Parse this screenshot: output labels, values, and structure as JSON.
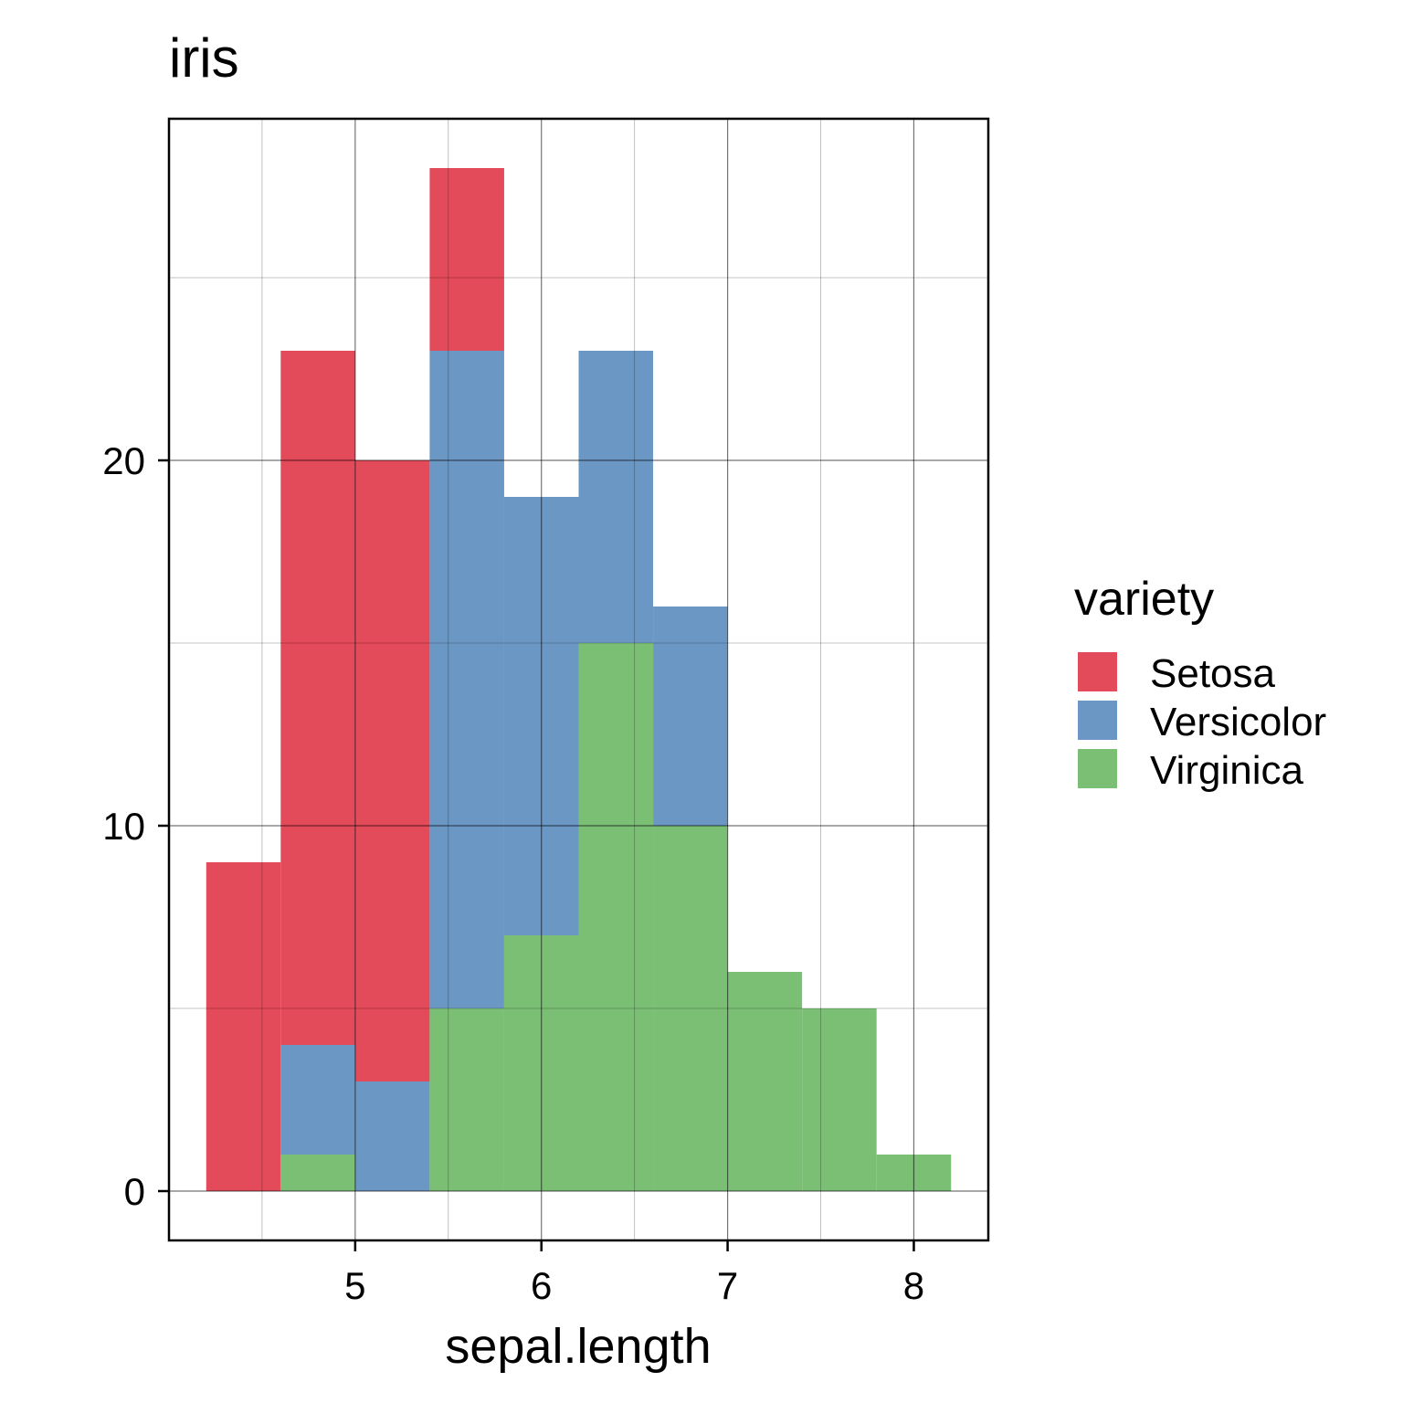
{
  "chart_data": {
    "type": "bar",
    "stacked": true,
    "title": "iris",
    "xlabel": "sepal.length",
    "ylabel": "",
    "bin_edges": [
      4.2,
      4.6,
      5.0,
      5.4,
      5.8,
      6.2,
      6.6,
      7.0,
      7.4,
      7.8,
      8.2
    ],
    "series": [
      {
        "name": "Setosa",
        "color": "#E44B5A",
        "values": [
          9,
          19,
          17,
          5,
          0,
          0,
          0,
          0,
          0,
          0
        ]
      },
      {
        "name": "Versicolor",
        "color": "#6B97C5",
        "values": [
          0,
          3,
          3,
          18,
          12,
          8,
          6,
          0,
          0,
          0
        ]
      },
      {
        "name": "Virginica",
        "color": "#7BBF75",
        "values": [
          0,
          1,
          0,
          5,
          7,
          15,
          10,
          6,
          5,
          1
        ]
      }
    ],
    "stack_order_bottom_to_top": [
      "Virginica",
      "Versicolor",
      "Setosa"
    ],
    "xlim": [
      4.0,
      8.4
    ],
    "ylim": [
      -1.35,
      29.35
    ],
    "xticks": [
      "5",
      "6",
      "7",
      "8"
    ],
    "yticks": [
      "0",
      "10",
      "20"
    ],
    "grid": true,
    "legend": {
      "title": "variety",
      "position": "right"
    }
  }
}
